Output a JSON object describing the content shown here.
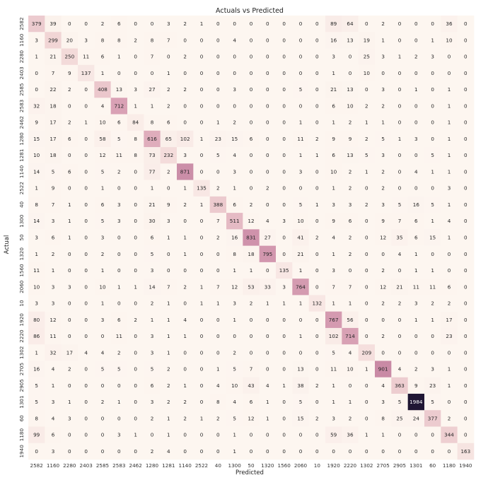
{
  "chart_data": {
    "type": "heatmap",
    "title": "Actuals vs Predicted",
    "xlabel": "Predicted",
    "ylabel": "Actual",
    "labels": [
      "2582",
      "1160",
      "2280",
      "2403",
      "2585",
      "2583",
      "2462",
      "1280",
      "1281",
      "1140",
      "2522",
      "40",
      "1300",
      "50",
      "1320",
      "1560",
      "2060",
      "10",
      "1920",
      "2220",
      "1302",
      "2705",
      "2905",
      "1301",
      "60",
      "1180",
      "1940"
    ],
    "matrix": [
      [
        379,
        39,
        0,
        0,
        2,
        6,
        0,
        0,
        3,
        2,
        1,
        0,
        0,
        0,
        0,
        0,
        0,
        0,
        89,
        64,
        0,
        2,
        0,
        0,
        0,
        36,
        0
      ],
      [
        3,
        299,
        20,
        3,
        8,
        8,
        2,
        8,
        7,
        0,
        0,
        0,
        4,
        0,
        0,
        0,
        0,
        0,
        16,
        13,
        19,
        1,
        0,
        0,
        1,
        10,
        0
      ],
      [
        1,
        21,
        250,
        11,
        6,
        1,
        0,
        7,
        0,
        2,
        0,
        0,
        0,
        0,
        0,
        0,
        0,
        0,
        3,
        0,
        25,
        3,
        1,
        2,
        3,
        0,
        0
      ],
      [
        0,
        7,
        9,
        137,
        1,
        0,
        0,
        0,
        1,
        0,
        0,
        0,
        0,
        0,
        0,
        0,
        0,
        0,
        1,
        0,
        10,
        0,
        0,
        0,
        0,
        0,
        0
      ],
      [
        0,
        22,
        2,
        0,
        408,
        13,
        3,
        27,
        2,
        2,
        0,
        0,
        3,
        0,
        0,
        0,
        5,
        0,
        21,
        13,
        0,
        3,
        0,
        1,
        0,
        1,
        0
      ],
      [
        32,
        18,
        0,
        0,
        4,
        712,
        1,
        1,
        2,
        0,
        0,
        0,
        0,
        0,
        0,
        0,
        0,
        0,
        6,
        10,
        2,
        2,
        0,
        0,
        0,
        1,
        0
      ],
      [
        9,
        17,
        2,
        1,
        10,
        6,
        84,
        8,
        6,
        0,
        0,
        1,
        2,
        0,
        0,
        0,
        1,
        0,
        1,
        2,
        1,
        1,
        0,
        0,
        0,
        1,
        0
      ],
      [
        15,
        17,
        6,
        0,
        58,
        5,
        8,
        616,
        65,
        102,
        1,
        23,
        15,
        6,
        0,
        0,
        11,
        2,
        9,
        9,
        2,
        5,
        1,
        3,
        0,
        1,
        0
      ],
      [
        10,
        18,
        0,
        0,
        12,
        11,
        8,
        73,
        232,
        3,
        0,
        5,
        4,
        0,
        0,
        0,
        1,
        1,
        6,
        13,
        5,
        3,
        0,
        0,
        5,
        1,
        0
      ],
      [
        14,
        5,
        6,
        0,
        5,
        2,
        0,
        77,
        2,
        871,
        0,
        0,
        3,
        0,
        0,
        0,
        3,
        0,
        10,
        2,
        1,
        2,
        0,
        4,
        1,
        1,
        0
      ],
      [
        1,
        9,
        0,
        0,
        1,
        0,
        0,
        1,
        0,
        1,
        135,
        2,
        1,
        0,
        2,
        0,
        0,
        0,
        1,
        2,
        0,
        2,
        0,
        0,
        0,
        3,
        0
      ],
      [
        8,
        7,
        1,
        0,
        6,
        3,
        0,
        21,
        9,
        2,
        1,
        388,
        6,
        2,
        0,
        0,
        5,
        1,
        3,
        3,
        2,
        3,
        5,
        16,
        5,
        1,
        0
      ],
      [
        14,
        3,
        1,
        0,
        5,
        3,
        0,
        30,
        3,
        0,
        0,
        7,
        511,
        12,
        4,
        3,
        10,
        0,
        9,
        6,
        0,
        9,
        7,
        6,
        1,
        4,
        0
      ],
      [
        3,
        6,
        1,
        0,
        3,
        0,
        0,
        6,
        1,
        1,
        0,
        2,
        16,
        831,
        27,
        0,
        41,
        2,
        4,
        2,
        0,
        12,
        35,
        6,
        15,
        1,
        0
      ],
      [
        1,
        2,
        0,
        0,
        2,
        0,
        0,
        5,
        0,
        1,
        0,
        0,
        8,
        18,
        795,
        0,
        21,
        0,
        1,
        2,
        0,
        0,
        4,
        1,
        0,
        0,
        0
      ],
      [
        11,
        1,
        0,
        0,
        1,
        0,
        0,
        3,
        0,
        0,
        0,
        0,
        1,
        1,
        0,
        135,
        1,
        0,
        3,
        0,
        0,
        2,
        0,
        1,
        1,
        0,
        0
      ],
      [
        10,
        3,
        3,
        0,
        10,
        1,
        1,
        14,
        7,
        2,
        1,
        7,
        12,
        53,
        33,
        3,
        764,
        0,
        7,
        7,
        0,
        12,
        21,
        11,
        11,
        6,
        0
      ],
      [
        3,
        3,
        0,
        0,
        1,
        0,
        0,
        2,
        1,
        0,
        1,
        1,
        3,
        2,
        1,
        1,
        1,
        132,
        1,
        1,
        0,
        2,
        2,
        3,
        2,
        2,
        0
      ],
      [
        80,
        12,
        0,
        0,
        3,
        6,
        2,
        1,
        1,
        4,
        0,
        0,
        1,
        0,
        0,
        0,
        0,
        0,
        767,
        56,
        0,
        0,
        0,
        1,
        1,
        17,
        0
      ],
      [
        86,
        11,
        0,
        0,
        0,
        11,
        0,
        3,
        1,
        1,
        0,
        0,
        0,
        0,
        0,
        0,
        1,
        0,
        102,
        714,
        0,
        2,
        0,
        0,
        0,
        23,
        0
      ],
      [
        1,
        32,
        17,
        4,
        4,
        2,
        0,
        3,
        1,
        0,
        0,
        0,
        2,
        0,
        0,
        0,
        0,
        0,
        5,
        4,
        209,
        0,
        0,
        0,
        0,
        0,
        0
      ],
      [
        16,
        4,
        2,
        0,
        5,
        5,
        0,
        5,
        2,
        0,
        0,
        1,
        5,
        7,
        0,
        0,
        13,
        0,
        11,
        10,
        1,
        901,
        4,
        2,
        3,
        1,
        0
      ],
      [
        5,
        1,
        0,
        0,
        0,
        0,
        0,
        6,
        2,
        1,
        0,
        4,
        10,
        43,
        4,
        1,
        38,
        2,
        1,
        0,
        0,
        4,
        363,
        9,
        23,
        1,
        0
      ],
      [
        5,
        3,
        1,
        0,
        2,
        1,
        0,
        3,
        2,
        2,
        0,
        8,
        4,
        6,
        1,
        0,
        5,
        0,
        1,
        1,
        0,
        3,
        5,
        1984,
        5,
        0,
        0
      ],
      [
        8,
        4,
        3,
        0,
        0,
        0,
        0,
        2,
        1,
        2,
        1,
        2,
        5,
        12,
        1,
        0,
        15,
        2,
        3,
        2,
        0,
        8,
        25,
        24,
        377,
        2,
        0
      ],
      [
        99,
        6,
        0,
        0,
        0,
        3,
        1,
        0,
        1,
        0,
        0,
        0,
        1,
        0,
        0,
        0,
        0,
        0,
        59,
        36,
        1,
        1,
        0,
        0,
        0,
        344,
        0
      ],
      [
        0,
        3,
        0,
        0,
        0,
        0,
        0,
        2,
        4,
        0,
        0,
        0,
        1,
        0,
        0,
        0,
        0,
        0,
        0,
        0,
        0,
        0,
        0,
        0,
        0,
        0,
        163
      ]
    ],
    "vmin": 0,
    "vmax": 1984,
    "grid": false,
    "legend": "none"
  }
}
